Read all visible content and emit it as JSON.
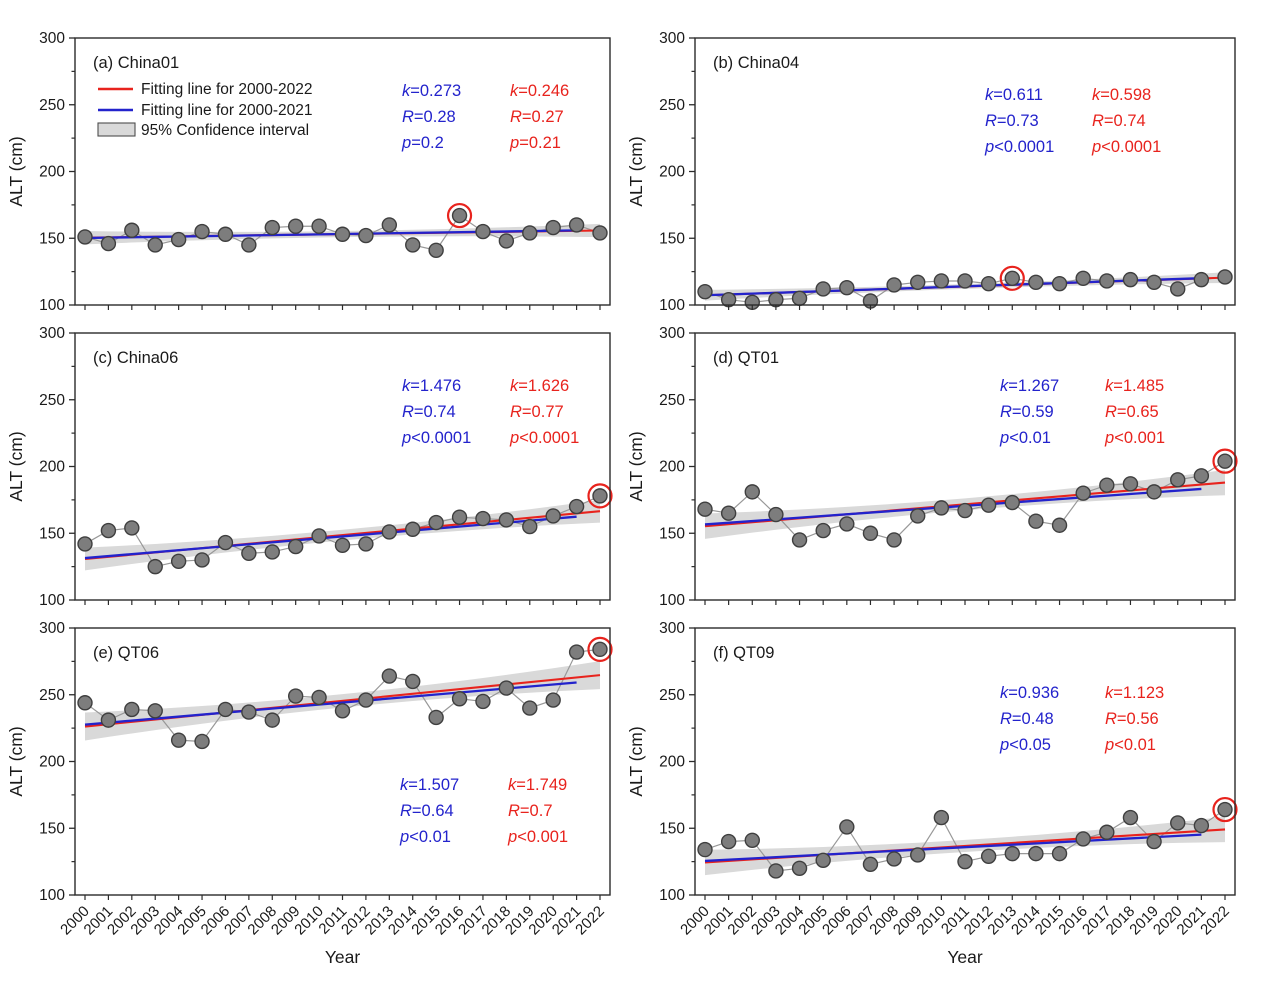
{
  "figure": {
    "ylabel": "ALT (cm)",
    "xlabel": "Year",
    "colors": {
      "red_line": "#e8231d",
      "blue_line": "#2323cc",
      "red_text": "#e8231d",
      "blue_text": "#2323cc",
      "ci_fill": "#d9d9d9",
      "point_fill": "#7d7d7d",
      "point_stroke": "#3f3f3f",
      "connect_line": "#989898",
      "axis": "#2b2b2b",
      "text": "#1a1a1a"
    },
    "legend": {
      "items": [
        {
          "label": "Fitting line for 2000-2022",
          "swatch": "red-line"
        },
        {
          "label": "Fitting line for 2000-2021",
          "swatch": "blue-line"
        },
        {
          "label": "95% Confidence interval",
          "swatch": "ci-box"
        }
      ]
    }
  },
  "chart_data": {
    "type": "line",
    "x": [
      2000,
      2001,
      2002,
      2003,
      2004,
      2005,
      2006,
      2007,
      2008,
      2009,
      2010,
      2011,
      2012,
      2013,
      2014,
      2015,
      2016,
      2017,
      2018,
      2019,
      2020,
      2021,
      2022
    ],
    "ylim": [
      100,
      300
    ],
    "yticks": [
      100,
      150,
      200,
      250,
      300
    ],
    "yticks_minor": [
      125,
      175,
      225,
      275
    ],
    "ylabel": "ALT (cm)",
    "xlabel": "Year",
    "grid": false,
    "legend_position": "top-left of panel (a)",
    "panels": [
      {
        "key": "a",
        "title": "(a) China01",
        "site": "China01",
        "alt_cm": [
          151,
          146,
          156,
          145,
          149,
          155,
          153,
          145,
          158,
          159,
          159,
          153,
          152,
          160,
          145,
          141,
          167,
          155,
          148,
          154,
          158,
          160,
          154
        ],
        "circled_year": 2016,
        "fit_blue": {
          "period": "2000-2021",
          "y_start": 150.2,
          "y_end": 155.9,
          "k": "k=0.273",
          "R": "R=0.28",
          "p": "p=0.2"
        },
        "fit_red": {
          "period": "2000-2022",
          "y_start": 150.4,
          "y_end": 155.8,
          "k": "k=0.246",
          "R": "R=0.27",
          "p": "p=0.21"
        },
        "ci_halfwidth_cm": [
          5.0,
          2.3
        ]
      },
      {
        "key": "b",
        "title": "(b) China04",
        "site": "China04",
        "alt_cm": [
          110,
          104,
          102,
          104,
          105,
          112,
          113,
          103,
          115,
          117,
          118,
          118,
          116,
          120,
          117,
          116,
          120,
          118,
          119,
          117,
          112,
          119,
          121
        ],
        "circled_year": 2013,
        "fit_blue": {
          "period": "2000-2021",
          "y_start": 107.3,
          "y_end": 120.1,
          "k": "k=0.611",
          "R": "R=0.73",
          "p": "p<0.0001"
        },
        "fit_red": {
          "period": "2000-2022",
          "y_start": 107.3,
          "y_end": 120.5,
          "k": "k=0.598",
          "R": "R=0.74",
          "p": "p<0.0001"
        },
        "ci_halfwidth_cm": [
          4.0,
          1.8
        ]
      },
      {
        "key": "c",
        "title": "(c) China06",
        "site": "China06",
        "alt_cm": [
          142,
          152,
          154,
          125,
          129,
          130,
          143,
          135,
          136,
          140,
          148,
          141,
          142,
          151,
          153,
          158,
          162,
          161,
          160,
          155,
          163,
          170,
          178
        ],
        "circled_year": 2022,
        "fit_blue": {
          "period": "2000-2021",
          "y_start": 131.4,
          "y_end": 162.4,
          "k": "k=1.476",
          "R": "R=0.74",
          "p": "p<0.0001"
        },
        "fit_red": {
          "period": "2000-2022",
          "y_start": 130.7,
          "y_end": 166.5,
          "k": "k=1.626",
          "R": "R=0.77",
          "p": "p<0.0001"
        },
        "ci_halfwidth_cm": [
          8.5,
          4.0
        ]
      },
      {
        "key": "d",
        "title": "(d) QT01",
        "site": "QT01",
        "alt_cm": [
          168,
          165,
          181,
          164,
          145,
          152,
          157,
          150,
          145,
          163,
          169,
          167,
          171,
          173,
          159,
          156,
          180,
          186,
          187,
          181,
          190,
          193,
          204
        ],
        "circled_year": 2022,
        "fit_blue": {
          "period": "2000-2021",
          "y_start": 156.6,
          "y_end": 183.2,
          "k": "k=1.267",
          "R": "R=0.59",
          "p": "p<0.01"
        },
        "fit_red": {
          "period": "2000-2022",
          "y_start": 155.3,
          "y_end": 188.0,
          "k": "k=1.485",
          "R": "R=0.65",
          "p": "p<0.001"
        },
        "ci_halfwidth_cm": [
          9.5,
          4.5
        ]
      },
      {
        "key": "e",
        "title": "(e) QT06",
        "site": "QT06",
        "alt_cm": [
          244,
          231,
          239,
          238,
          216,
          215,
          239,
          237,
          231,
          249,
          248,
          238,
          246,
          264,
          260,
          233,
          247,
          245,
          255,
          240,
          246,
          282,
          284
        ],
        "circled_year": 2022,
        "fit_blue": {
          "period": "2000-2021",
          "y_start": 227.6,
          "y_end": 259.2,
          "k": "k=1.507",
          "R": "R=0.64",
          "p": "p<0.01"
        },
        "fit_red": {
          "period": "2000-2022",
          "y_start": 226.2,
          "y_end": 264.7,
          "k": "k=1.749",
          "R": "R=0.7",
          "p": "p<0.001"
        },
        "ci_halfwidth_cm": [
          10.5,
          5.0
        ]
      },
      {
        "key": "f",
        "title": "(f) QT09",
        "site": "QT09",
        "alt_cm": [
          134,
          140,
          141,
          118,
          120,
          126,
          151,
          123,
          127,
          130,
          158,
          125,
          129,
          131,
          131,
          131,
          142,
          147,
          158,
          140,
          154,
          152,
          164
        ],
        "circled_year": 2022,
        "fit_blue": {
          "period": "2000-2021",
          "y_start": 125.5,
          "y_end": 145.2,
          "k": "k=0.936",
          "R": "R=0.48",
          "p": "p<0.05"
        },
        "fit_red": {
          "period": "2000-2022",
          "y_start": 124.4,
          "y_end": 149.1,
          "k": "k=1.123",
          "R": "R=0.56",
          "p": "p<0.01"
        },
        "ci_halfwidth_cm": [
          9.5,
          4.5
        ]
      }
    ]
  }
}
